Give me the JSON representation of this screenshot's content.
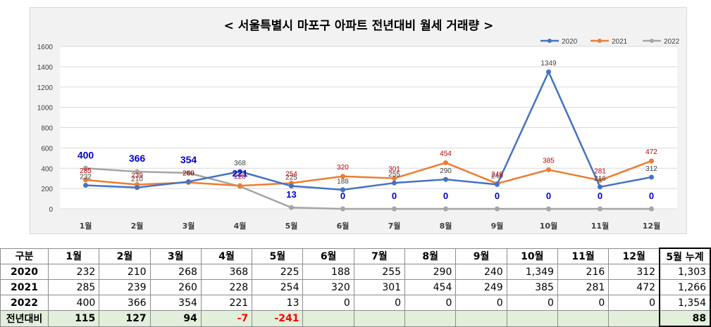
{
  "chart_data": {
    "type": "line",
    "title": "< 서울특별시 마포구  아파트 전년대비 월세 거래량 >",
    "categories": [
      "1월",
      "2월",
      "3월",
      "4월",
      "5월",
      "6월",
      "7월",
      "8월",
      "9월",
      "10월",
      "11월",
      "12월"
    ],
    "ylim": [
      0,
      1600
    ],
    "yticks": [
      0,
      200,
      400,
      600,
      800,
      1000,
      1200,
      1400,
      1600
    ],
    "grid": true,
    "legend_position": "top-right",
    "series": [
      {
        "name": "2020",
        "color": "#4472c4",
        "values": [
          232,
          210,
          268,
          368,
          225,
          188,
          255,
          290,
          240,
          1349,
          216,
          312
        ]
      },
      {
        "name": "2021",
        "color": "#ed7d31",
        "values": [
          285,
          239,
          260,
          228,
          254,
          320,
          301,
          454,
          249,
          385,
          281,
          472
        ]
      },
      {
        "name": "2022",
        "color": "#a5a5a5",
        "values": [
          400,
          366,
          354,
          221,
          13,
          0,
          0,
          0,
          0,
          0,
          0,
          0
        ]
      }
    ]
  },
  "table": {
    "header": [
      "구분",
      "1월",
      "2월",
      "3월",
      "4월",
      "5월",
      "6월",
      "7월",
      "8월",
      "9월",
      "10월",
      "11월",
      "12월",
      "5월 누계"
    ],
    "rows": [
      {
        "label": "2020",
        "cells": [
          "232",
          "210",
          "268",
          "368",
          "225",
          "188",
          "255",
          "290",
          "240",
          "1,349",
          "216",
          "312",
          "1,303"
        ]
      },
      {
        "label": "2021",
        "cells": [
          "285",
          "239",
          "260",
          "228",
          "254",
          "320",
          "301",
          "454",
          "249",
          "385",
          "281",
          "472",
          "1,266"
        ]
      },
      {
        "label": "2022",
        "cells": [
          "400",
          "366",
          "354",
          "221",
          "13",
          "0",
          "0",
          "0",
          "0",
          "0",
          "0",
          "0",
          "1,354"
        ]
      },
      {
        "label": "전년대비",
        "cells": [
          "115",
          "127",
          "94",
          "-7",
          "-241",
          "",
          "",
          "",
          "",
          "",
          "",
          "",
          "88"
        ]
      }
    ]
  }
}
